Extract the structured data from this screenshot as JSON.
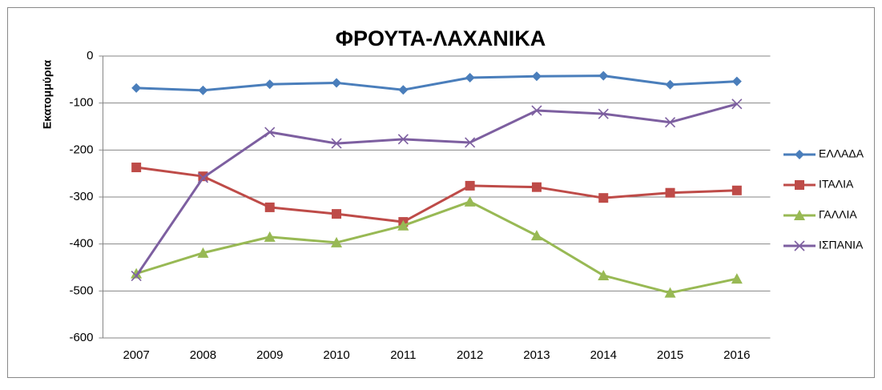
{
  "chart_data": {
    "type": "line",
    "title": "ΦΡΟΥΤΑ-ΛΑΧΑΝΙΚΑ",
    "y_label": "Εκατομμύρια",
    "categories": [
      "2007",
      "2008",
      "2009",
      "2010",
      "2011",
      "2012",
      "2013",
      "2014",
      "2015",
      "2016"
    ],
    "series": [
      {
        "name": "ΕΛΛΑΔΑ",
        "color": "#4a7ebb",
        "marker": "diamond",
        "values": [
          -68,
          -73,
          -60,
          -57,
          -72,
          -46,
          -43,
          -42,
          -61,
          -54
        ]
      },
      {
        "name": "ΙΤΑΛΙΑ",
        "color": "#be4b48",
        "marker": "square",
        "values": [
          -237,
          -256,
          -322,
          -336,
          -353,
          -276,
          -279,
          -302,
          -291,
          -286
        ]
      },
      {
        "name": "ΓΑΛΛΙΑ",
        "color": "#98b954",
        "marker": "triangle",
        "values": [
          -463,
          -419,
          -385,
          -397,
          -361,
          -310,
          -382,
          -467,
          -504,
          -474
        ]
      },
      {
        "name": "ΙΣΠΑΝΙΑ",
        "color": "#7d5fa0",
        "marker": "x",
        "values": [
          -468,
          -259,
          -162,
          -186,
          -177,
          -184,
          -116,
          -123,
          -141,
          -102
        ]
      }
    ],
    "ylim": [
      -600,
      0
    ],
    "yticks": [
      0,
      -100,
      -200,
      -300,
      -400,
      -500,
      -600
    ],
    "grid": true,
    "legend": "right"
  }
}
